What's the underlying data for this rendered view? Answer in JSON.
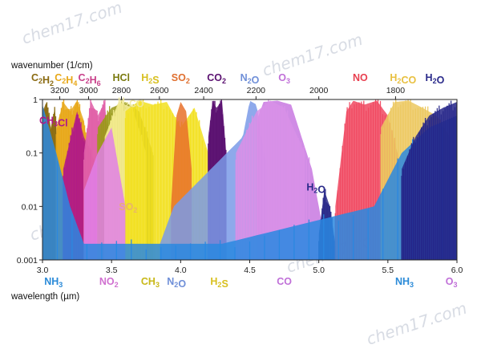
{
  "chart_data": {
    "type": "area",
    "watermark": "chem17.com",
    "top_axis": {
      "title": "wavenumber (1/cm)",
      "ticks": [
        3200,
        3000,
        2800,
        2600,
        2400,
        2200,
        2000,
        1800
      ]
    },
    "xlabel": "wavelength (µm)",
    "xlim": [
      3.0,
      6.0
    ],
    "x_ticks": [
      "3.0",
      "3.5",
      "4.0",
      "4.5",
      "5.0",
      "5.5",
      "6.0"
    ],
    "yscale": "log",
    "ylim": [
      0.001,
      1
    ],
    "y_ticks": [
      "1",
      "0.1",
      "0.01",
      "0.001"
    ],
    "molecule_labels_top": [
      {
        "id": "c2h2",
        "base": "C",
        "sub": "2",
        "base2": "H",
        "sub2": "2",
        "color": "#8a6a10",
        "wl": 3.0
      },
      {
        "id": "c2h4",
        "base": "C",
        "sub": "2",
        "base2": "H",
        "sub2": "4",
        "color": "#e8a818",
        "wl": 3.17
      },
      {
        "id": "c2h6",
        "base": "C",
        "sub": "2",
        "base2": "H",
        "sub2": "6",
        "color": "#c8408a",
        "wl": 3.34
      },
      {
        "id": "hcl",
        "base": "HCl",
        "sub": "",
        "base2": "",
        "sub2": "",
        "color": "#7a7a10",
        "wl": 3.57
      },
      {
        "id": "h2s",
        "base": "H",
        "sub": "2",
        "base2": "S",
        "sub2": "",
        "color": "#d8c020",
        "wl": 3.78
      },
      {
        "id": "so2",
        "base": "SO",
        "sub": "2",
        "base2": "",
        "sub2": "",
        "color": "#e07030",
        "wl": 4.0
      },
      {
        "id": "co2",
        "base": "CO",
        "sub": "2",
        "base2": "",
        "sub2": "",
        "color": "#5a1070",
        "wl": 4.26
      },
      {
        "id": "n2o",
        "base": "N",
        "sub": "2",
        "base2": "O",
        "sub2": "",
        "color": "#6f8fd8",
        "wl": 4.5
      },
      {
        "id": "o3",
        "base": "O",
        "sub": "3",
        "base2": "",
        "sub2": "",
        "color": "#c070d8",
        "wl": 4.75
      },
      {
        "id": "no",
        "base": "NO",
        "sub": "",
        "base2": "",
        "sub2": "",
        "color": "#e84050",
        "wl": 5.3
      },
      {
        "id": "h2co",
        "base": "H",
        "sub": "2",
        "base2": "CO",
        "sub2": "",
        "color": "#e8c040",
        "wl": 5.61
      },
      {
        "id": "h2o",
        "base": "H",
        "sub": "2",
        "base2": "O",
        "sub2": "",
        "color": "#2a2a8a",
        "wl": 5.84
      }
    ],
    "molecule_labels_bottom": [
      {
        "id": "nh3",
        "base": "NH",
        "sub": "3",
        "base2": "",
        "sub2": "",
        "color": "#2a8ad8",
        "wl": 3.08
      },
      {
        "id": "no2",
        "base": "NO",
        "sub": "2",
        "base2": "",
        "sub2": "",
        "color": "#d070d0",
        "wl": 3.48
      },
      {
        "id": "ch3",
        "base": "CH",
        "sub": "3",
        "base2": "",
        "sub2": "",
        "color": "#c8b818",
        "wl": 3.78
      },
      {
        "id": "n2o-b",
        "base": "N",
        "sub": "2",
        "base2": "O",
        "sub2": "",
        "color": "#6f8fd8",
        "wl": 3.97
      },
      {
        "id": "h2s-b",
        "base": "H",
        "sub": "2",
        "base2": "S",
        "sub2": "",
        "color": "#d8c020",
        "wl": 4.28
      },
      {
        "id": "co",
        "base": "CO",
        "sub": "",
        "base2": "",
        "sub2": "",
        "color": "#c070d8",
        "wl": 4.75
      },
      {
        "id": "nh3-b",
        "base": "NH",
        "sub": "3",
        "base2": "",
        "sub2": "",
        "color": "#2a8ad8",
        "wl": 5.62
      },
      {
        "id": "o3-b",
        "base": "O",
        "sub": "3",
        "base2": "",
        "sub2": "",
        "color": "#c070d8",
        "wl": 5.96
      }
    ],
    "inner_labels": [
      {
        "id": "ch3cl",
        "base": "CH",
        "sub": "3",
        "base2": "Cl",
        "sub2": "",
        "color": "#b01888",
        "wl": 3.08,
        "y": 0.35,
        "faint": false
      },
      {
        "id": "h2co-in",
        "base": "H",
        "sub": "2",
        "base2": "CO",
        "sub2": "",
        "color": "#f0e8a0",
        "wl": 3.64,
        "y": 0.8,
        "faint": true
      },
      {
        "id": "so2-in",
        "base": "SO",
        "sub": "2",
        "base2": "",
        "sub2": "",
        "color": "#e8b070",
        "wl": 3.62,
        "y": 0.0085,
        "faint": true
      },
      {
        "id": "h2o-in",
        "base": "H",
        "sub": "2",
        "base2": "O",
        "sub2": "",
        "color": "#2a2a8a",
        "wl": 4.98,
        "y": 0.02,
        "faint": false
      }
    ],
    "series": [
      {
        "name": "C2H2",
        "color": "#8a6a10",
        "region": [
          3.0,
          3.12
        ],
        "points": [
          [
            3.0,
            0.6
          ],
          [
            3.03,
            0.9
          ],
          [
            3.06,
            0.3
          ],
          [
            3.09,
            0.7
          ],
          [
            3.12,
            0.05
          ]
        ],
        "lines": true
      },
      {
        "name": "C2H4",
        "color": "#e8a818",
        "region": [
          3.1,
          3.35
        ],
        "points": [
          [
            3.1,
            0.3
          ],
          [
            3.15,
            0.9
          ],
          [
            3.2,
            0.6
          ],
          [
            3.25,
            0.95
          ],
          [
            3.3,
            0.4
          ],
          [
            3.35,
            0.05
          ]
        ],
        "lines": true
      },
      {
        "name": "CH3Cl",
        "color": "#b01888",
        "region": [
          3.15,
          3.45
        ],
        "points": [
          [
            3.15,
            0.05
          ],
          [
            3.25,
            0.6
          ],
          [
            3.3,
            0.2
          ],
          [
            3.4,
            0.05
          ]
        ],
        "lines": true
      },
      {
        "name": "C2H6",
        "color": "#e060a8",
        "region": [
          3.3,
          3.5
        ],
        "points": [
          [
            3.3,
            0.1
          ],
          [
            3.35,
            0.95
          ],
          [
            3.4,
            0.5
          ],
          [
            3.45,
            0.9
          ],
          [
            3.5,
            0.05
          ]
        ],
        "lines": true
      },
      {
        "name": "HCl",
        "color": "#9a9a18",
        "region": [
          3.4,
          3.8
        ],
        "points": [
          [
            3.4,
            0.3
          ],
          [
            3.5,
            0.7
          ],
          [
            3.6,
            0.9
          ],
          [
            3.7,
            0.6
          ],
          [
            3.8,
            0.1
          ]
        ],
        "lines": true
      },
      {
        "name": "H2CO",
        "color": "#f4ec90",
        "region": [
          3.45,
          3.75
        ],
        "points": [
          [
            3.45,
            0.2
          ],
          [
            3.55,
            0.9
          ],
          [
            3.65,
            0.7
          ],
          [
            3.75,
            0.1
          ]
        ],
        "lines": true
      },
      {
        "name": "H2S",
        "color": "#f2e020",
        "region": [
          3.6,
          4.2
        ],
        "points": [
          [
            3.6,
            0.6
          ],
          [
            3.7,
            0.95
          ],
          [
            3.8,
            0.8
          ],
          [
            3.9,
            0.9
          ],
          [
            4.0,
            0.3
          ],
          [
            4.1,
            0.7
          ],
          [
            4.2,
            0.1
          ]
        ],
        "lines": true
      },
      {
        "name": "NO2",
        "color": "#e080e8",
        "region": [
          3.3,
          3.6
        ],
        "points": [
          [
            3.3,
            0.02
          ],
          [
            3.4,
            0.1
          ],
          [
            3.5,
            0.3
          ],
          [
            3.6,
            0.01
          ]
        ],
        "lines": false
      },
      {
        "name": "SO2",
        "color": "#e8702a",
        "region": [
          3.93,
          4.1
        ],
        "points": [
          [
            3.93,
            0.01
          ],
          [
            3.97,
            0.5
          ],
          [
            4.0,
            0.9
          ],
          [
            4.04,
            0.6
          ],
          [
            4.08,
            0.05
          ]
        ],
        "lines": false
      },
      {
        "name": "CO2",
        "color": "#5a1070",
        "region": [
          4.2,
          4.33
        ],
        "points": [
          [
            4.2,
            0.2
          ],
          [
            4.23,
            0.9
          ],
          [
            4.26,
            0.7
          ],
          [
            4.3,
            0.95
          ],
          [
            4.33,
            0.1
          ]
        ],
        "lines": true
      },
      {
        "name": "N2O",
        "color": "#7a9ae8",
        "region": [
          3.85,
          4.62
        ],
        "points": [
          [
            3.85,
            0.002
          ],
          [
            3.95,
            0.01
          ],
          [
            4.45,
            0.2
          ],
          [
            4.5,
            0.95
          ],
          [
            4.55,
            0.8
          ],
          [
            4.62,
            0.05
          ]
        ],
        "lines": false
      },
      {
        "name": "O3",
        "color": "#c878e0",
        "region": [
          4.55,
          5.05
        ],
        "points": [
          [
            4.55,
            0.4
          ],
          [
            4.6,
            0.9
          ],
          [
            4.7,
            0.95
          ],
          [
            4.8,
            0.8
          ],
          [
            4.95,
            0.05
          ],
          [
            5.05,
            0.002
          ]
        ],
        "lines": false
      },
      {
        "name": "CO",
        "color": "#d890e8",
        "region": [
          4.4,
          4.95
        ],
        "points": [
          [
            4.4,
            0.1
          ],
          [
            4.55,
            0.6
          ],
          [
            4.65,
            0.95
          ],
          [
            4.75,
            0.7
          ],
          [
            4.9,
            0.1
          ]
        ],
        "lines": true
      },
      {
        "name": "H2O",
        "color": "#2a2a8a",
        "region": [
          5.0,
          5.12
        ],
        "points": [
          [
            5.0,
            0.003
          ],
          [
            5.04,
            0.02
          ],
          [
            5.08,
            0.01
          ],
          [
            5.12,
            0.002
          ]
        ],
        "lines": true
      },
      {
        "name": "NO",
        "color": "#f04860",
        "region": [
          5.12,
          5.6
        ],
        "points": [
          [
            5.12,
            0.01
          ],
          [
            5.2,
            0.6
          ],
          [
            5.25,
            0.95
          ],
          [
            5.33,
            0.8
          ],
          [
            5.42,
            0.95
          ],
          [
            5.5,
            0.5
          ],
          [
            5.6,
            0.05
          ]
        ],
        "lines": true
      },
      {
        "name": "H2CO-b",
        "color": "#ecc860",
        "region": [
          5.45,
          5.95
        ],
        "points": [
          [
            5.45,
            0.3
          ],
          [
            5.55,
            0.9
          ],
          [
            5.65,
            0.95
          ],
          [
            5.75,
            0.7
          ],
          [
            5.85,
            0.5
          ],
          [
            5.95,
            0.2
          ]
        ],
        "lines": true
      },
      {
        "name": "NH3",
        "color": "#2a88e0",
        "region": [
          3.0,
          6.0
        ],
        "points": [
          [
            3.0,
            0.8
          ],
          [
            3.1,
            0.1
          ],
          [
            3.2,
            0.01
          ],
          [
            3.3,
            0.002
          ],
          [
            4.3,
            0.002
          ],
          [
            5.4,
            0.01
          ],
          [
            5.6,
            0.1
          ],
          [
            5.8,
            0.3
          ],
          [
            6.0,
            0.5
          ]
        ],
        "lines": true
      },
      {
        "name": "H2O-b",
        "color": "#242488",
        "region": [
          5.6,
          6.0
        ],
        "points": [
          [
            5.6,
            0.05
          ],
          [
            5.7,
            0.2
          ],
          [
            5.8,
            0.5
          ],
          [
            5.9,
            0.7
          ],
          [
            6.0,
            0.9
          ]
        ],
        "lines": true
      }
    ]
  }
}
